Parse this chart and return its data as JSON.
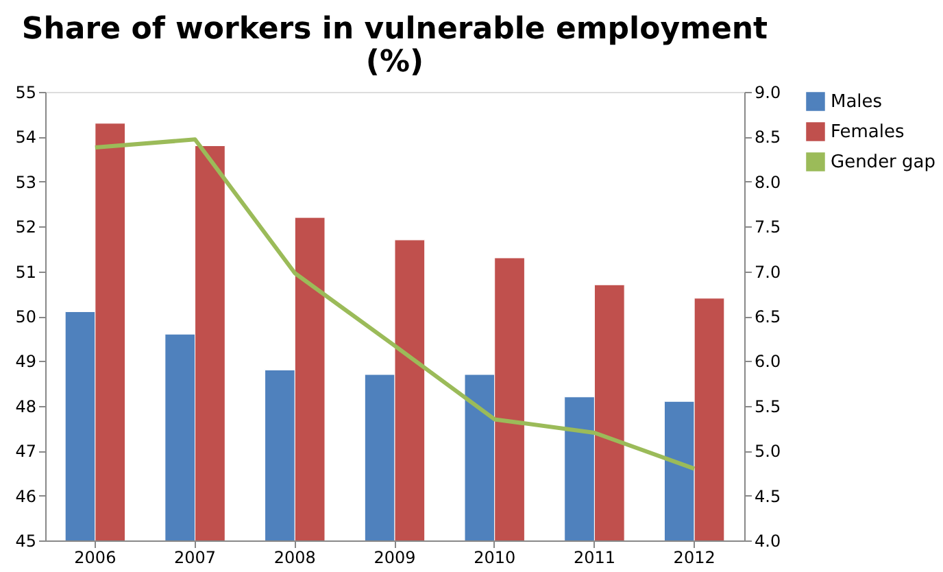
{
  "chart_data": {
    "type": "bar",
    "title": [
      "Share of workers in vulnerable employment",
      "(%)"
    ],
    "categories": [
      "2006",
      "2007",
      "2008",
      "2009",
      "2010",
      "2011",
      "2012"
    ],
    "series": [
      {
        "name": "Males",
        "color": "#4f81bd",
        "values": [
          50.1,
          49.6,
          48.8,
          48.7,
          48.7,
          48.2,
          48.1
        ]
      },
      {
        "name": "Females",
        "color": "#c0504d",
        "values": [
          54.3,
          53.8,
          52.2,
          51.7,
          51.3,
          50.7,
          50.4
        ]
      },
      {
        "name": "Gender gap",
        "color": "#9bbb59",
        "type": "line",
        "axis": "y2",
        "marker": "none",
        "values": [
          8.38,
          8.47,
          6.98,
          6.17,
          5.35,
          5.2,
          4.8
        ]
      }
    ],
    "ylim": [
      45,
      55
    ],
    "yticks": [
      45,
      46,
      47,
      48,
      49,
      50,
      51,
      52,
      53,
      54,
      55
    ],
    "y2lim": [
      4.0,
      9.0
    ],
    "y2ticks": [
      {
        "value": 4,
        "label": "4.0"
      },
      {
        "value": 4.5,
        "label": "4.5"
      },
      {
        "value": 5,
        "label": "5.0"
      },
      {
        "value": 5.5,
        "label": "5.5"
      },
      {
        "value": 6,
        "label": "6.0"
      },
      {
        "value": 6.5,
        "label": "6.5"
      },
      {
        "value": 7,
        "label": "7.0"
      },
      {
        "value": 7.5,
        "label": "7.5"
      },
      {
        "value": 8,
        "label": "8.0"
      },
      {
        "value": 8.5,
        "label": "8.5"
      },
      {
        "value": 9,
        "label": "9.0"
      }
    ],
    "grid": false,
    "legend": "right"
  }
}
